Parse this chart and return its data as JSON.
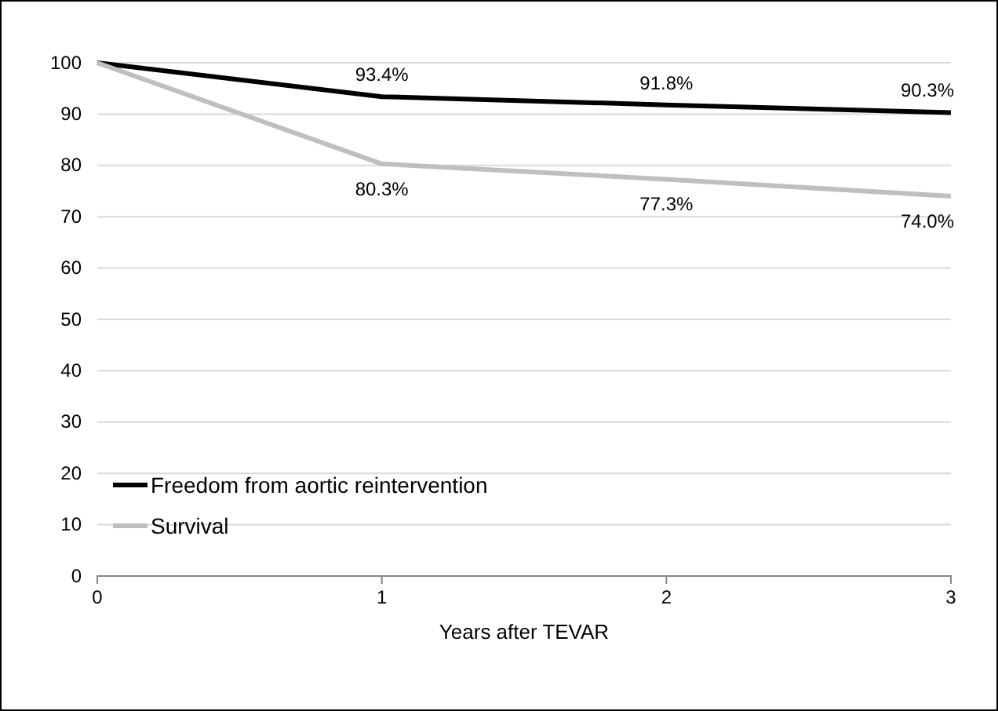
{
  "chart_data": {
    "type": "line",
    "xlabel": "Years after TEVAR",
    "x": [
      0,
      1,
      2,
      3
    ],
    "xlim": [
      0,
      3
    ],
    "xticks": [
      0,
      1,
      2,
      3
    ],
    "ylim": [
      0,
      100
    ],
    "yticks": [
      0,
      10,
      20,
      30,
      40,
      50,
      60,
      70,
      80,
      90,
      100
    ],
    "grid": "y",
    "legend": "bottom left",
    "marker": "none",
    "series": [
      {
        "name": "Freedom from aortic reintervention",
        "color": "#000000",
        "values": [
          100,
          93.4,
          91.8,
          90.3
        ],
        "value_labels": [
          null,
          "93.4%",
          "91.8%",
          "90.3%"
        ]
      },
      {
        "name": "Survival",
        "color": "#bfbfbf",
        "values": [
          100,
          80.3,
          77.3,
          74.0
        ],
        "value_labels": [
          null,
          "80.3%",
          "77.3%",
          "74.0%"
        ]
      }
    ]
  }
}
